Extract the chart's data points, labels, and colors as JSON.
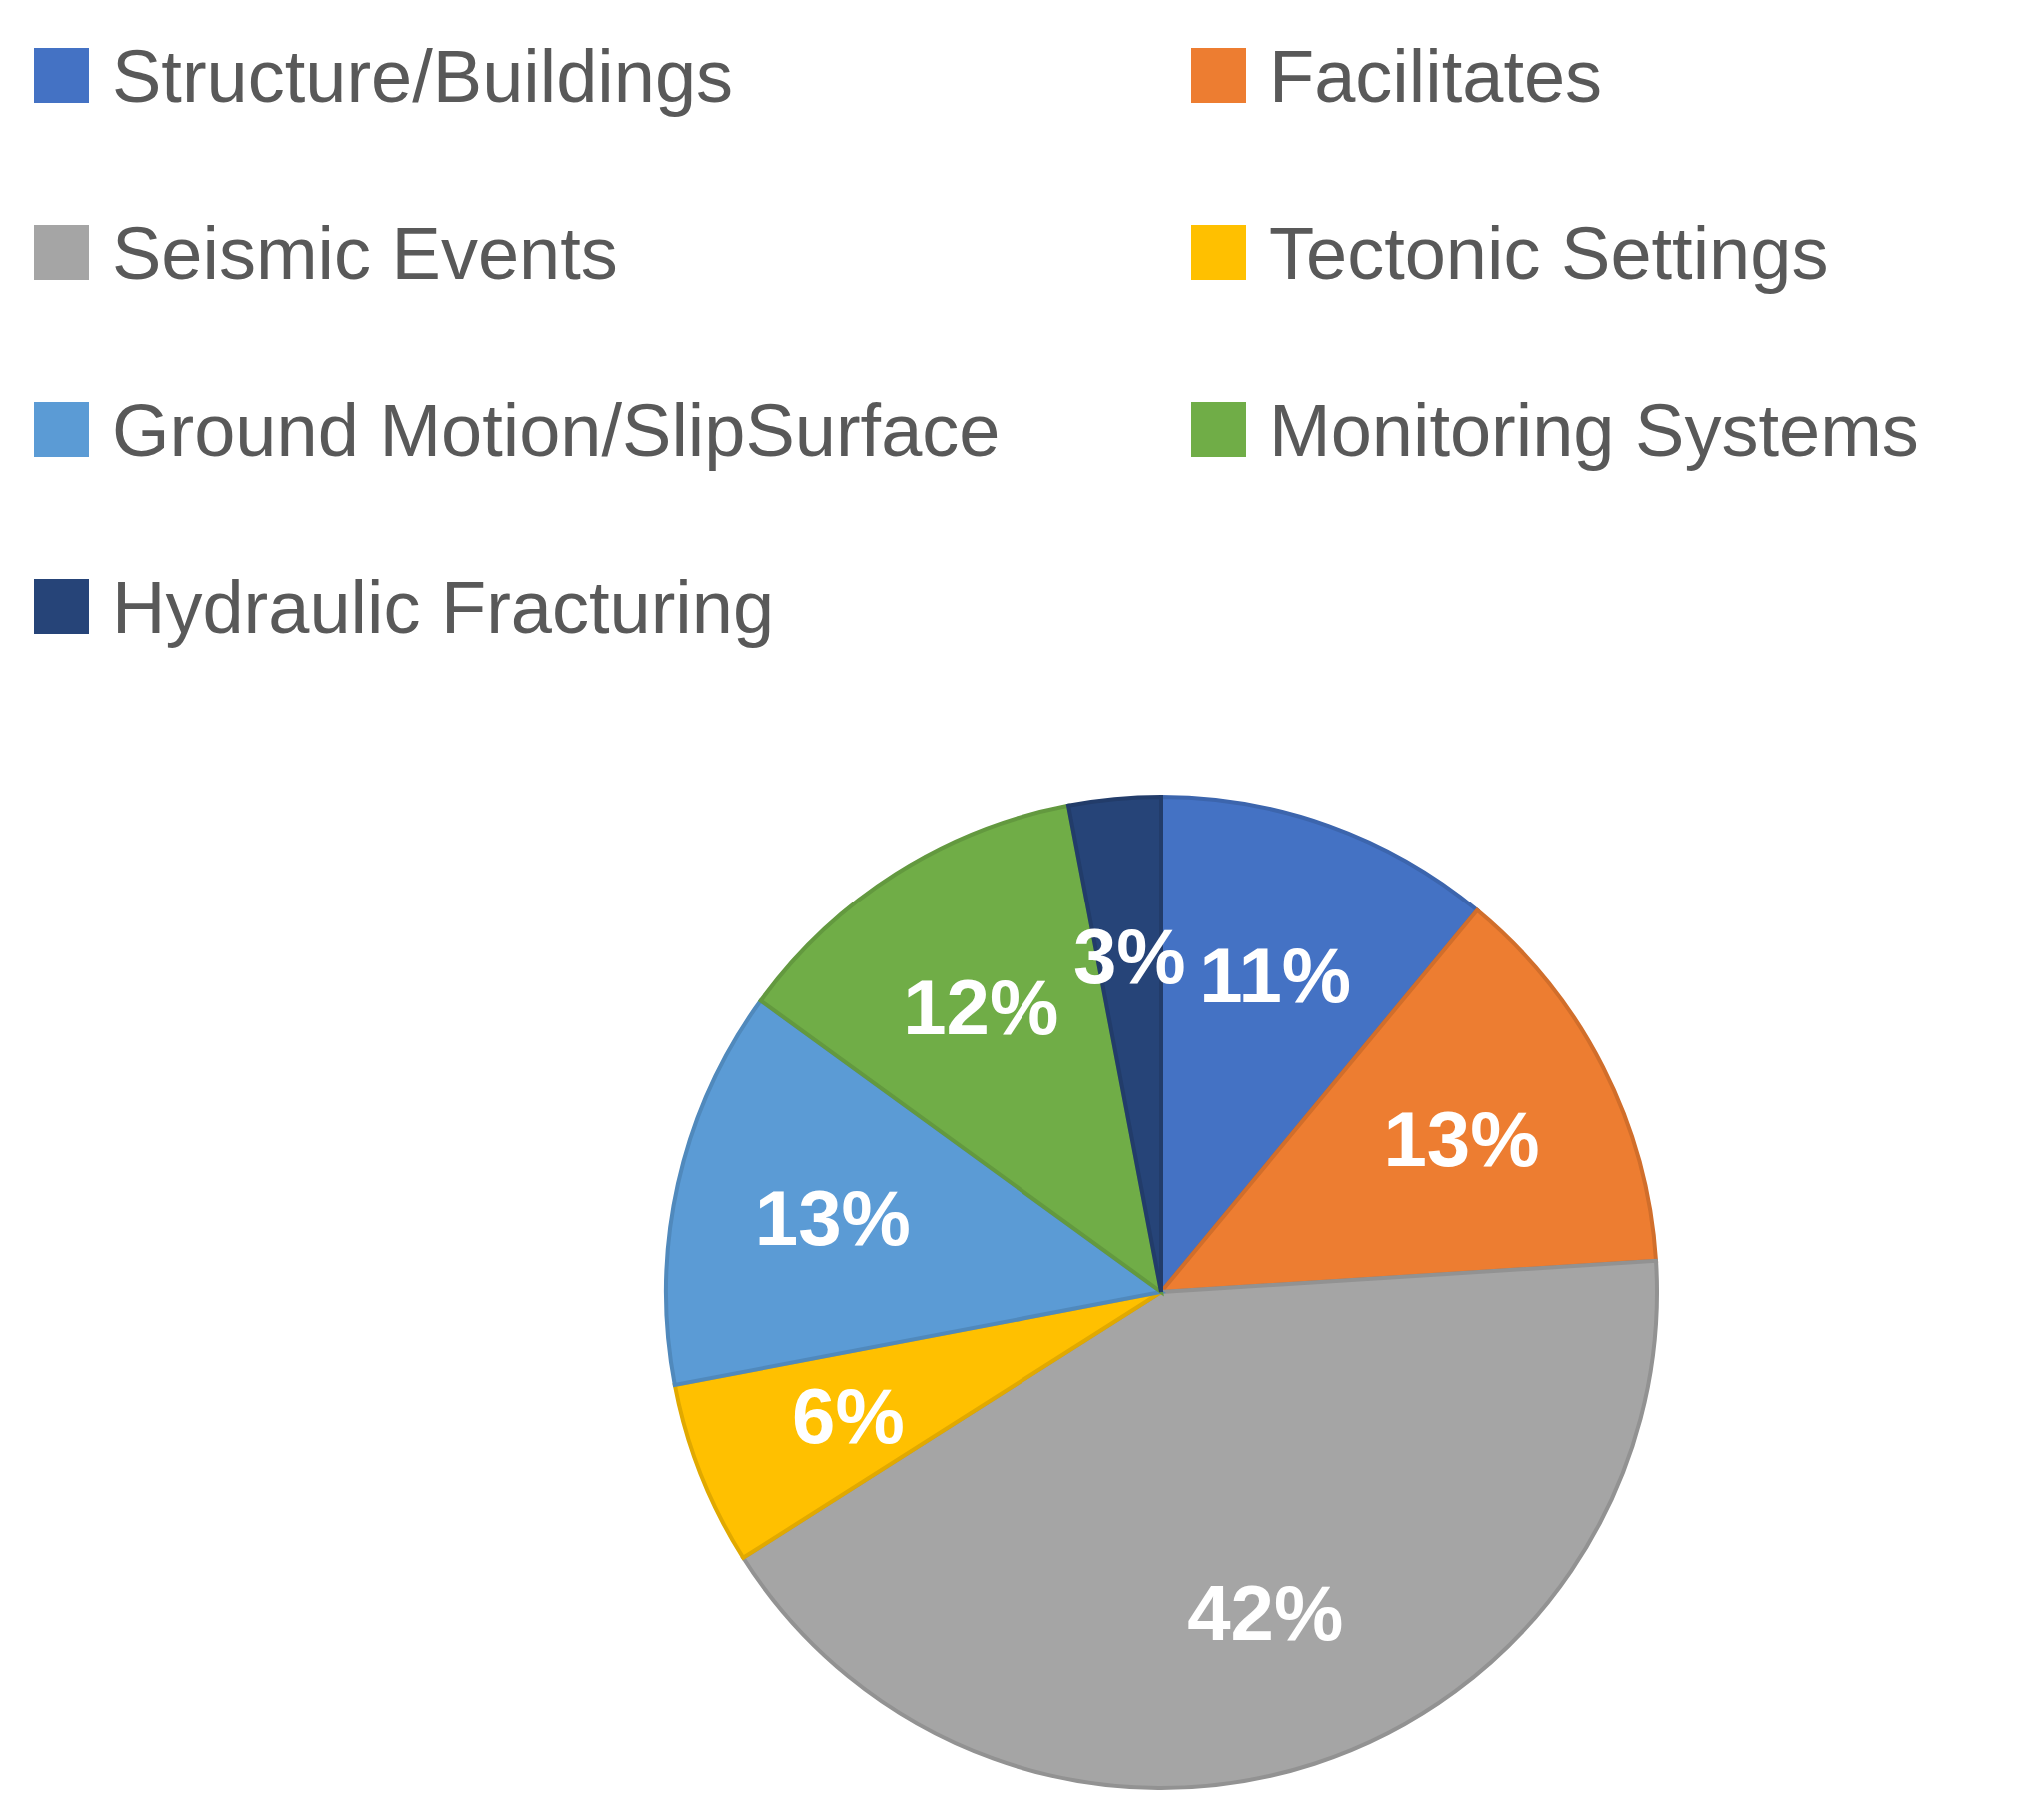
{
  "chart_data": {
    "type": "pie",
    "categories": [
      "Structure/Buildings",
      "Facilitates",
      "Seismic Events",
      "Tectonic Settings",
      "Ground Motion/SlipSurface",
      "Monitoring Systems",
      "Hydraulic Fracturing"
    ],
    "values": [
      11,
      13,
      42,
      6,
      13,
      12,
      3
    ],
    "colors": [
      "#4472c4",
      "#ed7d31",
      "#a5a5a5",
      "#ffc000",
      "#5b9bd5",
      "#70ad47",
      "#264478"
    ],
    "value_labels": [
      "11%",
      "13%",
      "42%",
      "6%",
      "13%",
      "12%",
      "3%"
    ],
    "legend": "top"
  }
}
